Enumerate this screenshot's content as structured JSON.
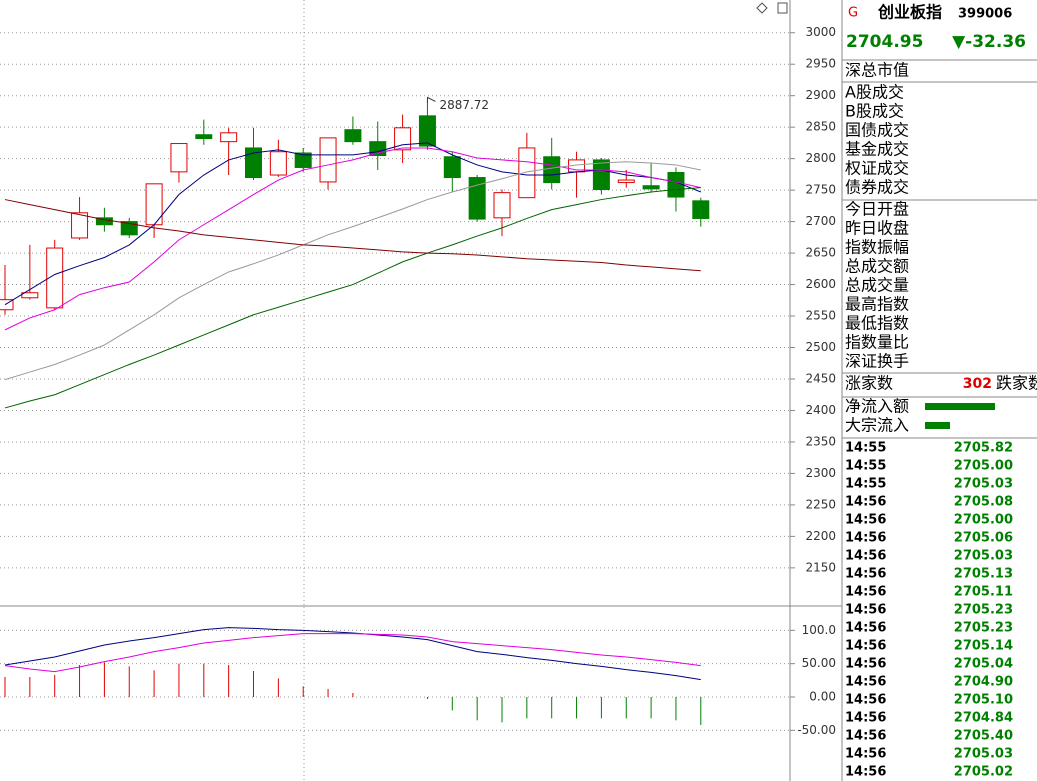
{
  "chart_data": [
    {
      "type": "candlestick",
      "open": [
        2560,
        2579,
        2563,
        2674,
        2706,
        2700,
        2695,
        2779,
        2838,
        2827,
        2817,
        2774,
        2809,
        2763,
        2846,
        2827,
        2814,
        2868,
        2803,
        2770,
        2706,
        2738,
        2803,
        2779,
        2798,
        2762,
        2757,
        2778,
        2733
      ],
      "high": [
        2631,
        2663,
        2671,
        2739,
        2722,
        2706,
        2760,
        2824,
        2862,
        2849,
        2849,
        2830,
        2817,
        2833,
        2867,
        2859,
        2870,
        2887.72,
        2811,
        2774,
        2751,
        2841,
        2833,
        2811,
        2801,
        2782,
        2793,
        2786,
        2738
      ],
      "low": [
        2552,
        2576,
        2560,
        2671,
        2684,
        2674,
        2674,
        2762,
        2822,
        2774,
        2766,
        2771,
        2779,
        2751,
        2822,
        2782,
        2793,
        2814,
        2747,
        2700,
        2677,
        2738,
        2751,
        2738,
        2743,
        2754,
        2746,
        2716,
        2692
      ],
      "close": [
        2576,
        2587,
        2658,
        2714,
        2695,
        2679,
        2760,
        2824,
        2832,
        2841,
        2770,
        2811,
        2786,
        2833,
        2827,
        2805,
        2849,
        2820,
        2770,
        2704,
        2746,
        2817,
        2762,
        2798,
        2751,
        2766,
        2752,
        2739,
        2704.95
      ],
      "up_color": "#e00000",
      "down_color": "#008000",
      "moving_averages": [
        {
          "color": "#000080",
          "values": [
            2568,
            2592,
            2616,
            2630,
            2643,
            2663,
            2695,
            2743,
            2774,
            2798,
            2809,
            2814,
            2806,
            2806,
            2806,
            2811,
            2822,
            2825,
            2806,
            2790,
            2779,
            2774,
            2774,
            2779,
            2782,
            2774,
            2770,
            2763,
            2747
          ]
        },
        {
          "color": "#e000e0",
          "values": [
            2528,
            2547,
            2560,
            2584,
            2595,
            2604,
            2636,
            2671,
            2695,
            2719,
            2743,
            2766,
            2782,
            2790,
            2798,
            2809,
            2817,
            2817,
            2811,
            2801,
            2798,
            2795,
            2790,
            2782,
            2782,
            2779,
            2770,
            2763,
            2754
          ]
        },
        {
          "color": "#999999",
          "values": [
            2449,
            2461,
            2473,
            2488,
            2504,
            2528,
            2552,
            2579,
            2600,
            2620,
            2633,
            2647,
            2663,
            2679,
            2692,
            2706,
            2720,
            2735,
            2747,
            2758,
            2768,
            2779,
            2785,
            2790,
            2793,
            2795,
            2793,
            2790,
            2782
          ]
        },
        {
          "color": "#006400",
          "values": [
            2404,
            2415,
            2425,
            2441,
            2457,
            2473,
            2488,
            2504,
            2520,
            2536,
            2552,
            2564,
            2576,
            2588,
            2600,
            2618,
            2636,
            2650,
            2663,
            2677,
            2690,
            2705,
            2719,
            2727,
            2735,
            2741,
            2747,
            2751,
            2754
          ]
        },
        {
          "color": "#800000",
          "values": [
            2735,
            2727,
            2719,
            2711,
            2703,
            2697,
            2690,
            2685,
            2679,
            2675,
            2671,
            2667,
            2663,
            2661,
            2658,
            2655,
            2652,
            2650,
            2649,
            2647,
            2644,
            2641,
            2639,
            2637,
            2635,
            2631,
            2628,
            2625,
            2622
          ]
        }
      ],
      "ylim": [
        2091,
        3052
      ],
      "yticks": [
        3000,
        2950,
        2900,
        2850,
        2800,
        2750,
        2700,
        2650,
        2600,
        2550,
        2500,
        2450,
        2400,
        2350,
        2300,
        2250,
        2200,
        2150
      ],
      "grid": true
    },
    {
      "type": "macd",
      "values": [
        30,
        30,
        33,
        48,
        52,
        46,
        40,
        50,
        50,
        48,
        39,
        28,
        16,
        12,
        6,
        0,
        0,
        -3,
        -20,
        -35,
        -38,
        -32,
        -32,
        -32,
        -32,
        -32,
        -32,
        -35,
        -42
      ],
      "up_color": "#e00000",
      "down_color": "#008000",
      "series": [
        {
          "color": "#000080",
          "values": [
            48,
            54,
            60,
            69,
            78,
            84,
            89,
            95,
            101,
            104,
            103,
            101,
            100,
            98,
            96,
            93,
            90,
            86,
            77,
            68,
            64,
            59,
            55,
            50,
            46,
            41,
            37,
            32,
            26
          ]
        },
        {
          "color": "#e000e0",
          "values": [
            47,
            42,
            38,
            45,
            53,
            60,
            68,
            74,
            81,
            85,
            89,
            92,
            95,
            95,
            95,
            94,
            93,
            90,
            83,
            80,
            77,
            74,
            71,
            67,
            63,
            60,
            56,
            52,
            47
          ]
        }
      ],
      "ylim": [
        -126,
        135
      ],
      "yticks": [
        {
          "value": 100,
          "label": "100.0"
        },
        {
          "value": 50,
          "label": "50.00"
        },
        {
          "value": 0,
          "label": "0.00"
        },
        {
          "value": -50,
          "label": "-50.00"
        }
      ]
    }
  ],
  "quote_panel": {
    "flag": "G",
    "name": "创业板指",
    "code": "399006",
    "price": "2704.95",
    "change": "▼-32.36",
    "group1": [
      "深总市值"
    ],
    "group2": [
      "A股成交",
      "B股成交",
      "国债成交",
      "基金成交",
      "权证成交",
      "债券成交"
    ],
    "group3": [
      "今日开盘",
      "昨日收盘",
      "指数振幅",
      "总成交额",
      "总成交量",
      "最高指数",
      "最低指数",
      "指数量比",
      "深证换手"
    ],
    "breadth": {
      "label": "涨家数",
      "value": "302",
      "label2": "跌家数"
    },
    "flows": [
      "净流入额",
      "大宗流入"
    ],
    "trades": [
      [
        "14:55",
        "2705.82"
      ],
      [
        "14:55",
        "2705.00"
      ],
      [
        "14:55",
        "2705.03"
      ],
      [
        "14:56",
        "2705.08"
      ],
      [
        "14:56",
        "2705.00"
      ],
      [
        "14:56",
        "2705.06"
      ],
      [
        "14:56",
        "2705.03"
      ],
      [
        "14:56",
        "2705.13"
      ],
      [
        "14:56",
        "2705.11"
      ],
      [
        "14:56",
        "2705.23"
      ],
      [
        "14:56",
        "2705.23"
      ],
      [
        "14:56",
        "2705.14"
      ],
      [
        "14:56",
        "2705.04"
      ],
      [
        "14:56",
        "2704.90"
      ],
      [
        "14:56",
        "2705.10"
      ],
      [
        "14:56",
        "2704.84"
      ],
      [
        "14:56",
        "2705.40"
      ],
      [
        "14:56",
        "2705.03"
      ],
      [
        "14:56",
        "2705.02"
      ]
    ]
  }
}
